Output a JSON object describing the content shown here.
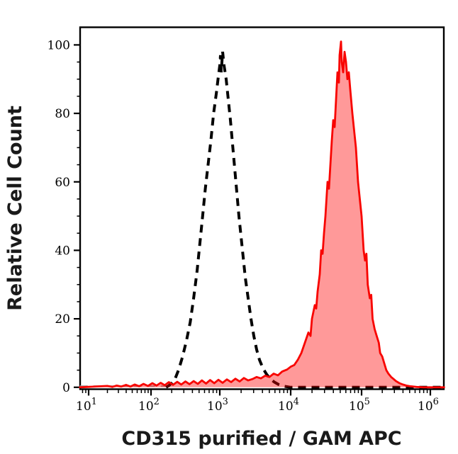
{
  "chart_data": {
    "type": "area",
    "subtype": "flow cytometry histogram overlay (two curves, no legend shown)",
    "title": "",
    "xlabel": "CD315 purified / GAM APC",
    "ylabel": "Relative Cell Count",
    "grid": false,
    "legend": "none",
    "x_axis": {
      "scale": "log",
      "min_log10": 0.86,
      "max_log10": 6.2,
      "tick_base": "10",
      "major_tick_exponents": [
        1,
        2,
        3,
        4,
        5,
        6
      ],
      "minor_tick_multiples": [
        2,
        3,
        4,
        5,
        6,
        7,
        8,
        9
      ]
    },
    "y_axis": {
      "min": 0,
      "max": 105,
      "major_ticks": [
        0,
        20,
        40,
        60,
        80,
        100
      ],
      "minor_tick_step": 5
    },
    "series": [
      {
        "name": "black-dashed-control",
        "description": "black dashed open histogram (unstained/negative control)",
        "line_color": "#000000",
        "line_style": "dashed",
        "fill": "none",
        "baseline_dash_color_left_of_rise": "#a3a3a3",
        "peak": {
          "x": 1100,
          "x_log10": 3.04,
          "y": 98
        },
        "points_log10x_y": [
          [
            2.22,
            0
          ],
          [
            2.26,
            0.5
          ],
          [
            2.3,
            1.2
          ],
          [
            2.35,
            2.5
          ],
          [
            2.4,
            5
          ],
          [
            2.46,
            9
          ],
          [
            2.52,
            14
          ],
          [
            2.57,
            19
          ],
          [
            2.62,
            26
          ],
          [
            2.67,
            34
          ],
          [
            2.71,
            42
          ],
          [
            2.75,
            50
          ],
          [
            2.79,
            58
          ],
          [
            2.83,
            65
          ],
          [
            2.87,
            72
          ],
          [
            2.91,
            80
          ],
          [
            2.95,
            86
          ],
          [
            2.98,
            91
          ],
          [
            3.0,
            94
          ],
          [
            3.01,
            97
          ],
          [
            3.02,
            92
          ],
          [
            3.04,
            98
          ],
          [
            3.06,
            94
          ],
          [
            3.09,
            90
          ],
          [
            3.12,
            84
          ],
          [
            3.15,
            78
          ],
          [
            3.18,
            71
          ],
          [
            3.21,
            64
          ],
          [
            3.24,
            57
          ],
          [
            3.27,
            50
          ],
          [
            3.3,
            44
          ],
          [
            3.33,
            38
          ],
          [
            3.36,
            32
          ],
          [
            3.4,
            26
          ],
          [
            3.44,
            20
          ],
          [
            3.48,
            15
          ],
          [
            3.52,
            11
          ],
          [
            3.56,
            8
          ],
          [
            3.61,
            5.5
          ],
          [
            3.66,
            3.8
          ],
          [
            3.71,
            2.5
          ],
          [
            3.77,
            1.5
          ],
          [
            3.83,
            0.8
          ],
          [
            3.9,
            0.3
          ],
          [
            4.0,
            0
          ],
          [
            6.2,
            0
          ]
        ]
      },
      {
        "name": "red-filled-stained",
        "description": "red filled histogram (CD315 purified / GAM APC stained cells)",
        "line_color": "#f80400",
        "line_style": "solid",
        "fill": "rgba(255,0,0,0.40)",
        "peak": {
          "x": 51000,
          "x_log10": 4.71,
          "y": 101
        },
        "points_log10x_y": [
          [
            0.86,
            0
          ],
          [
            1.3,
            0.4
          ],
          [
            1.38,
            0.1
          ],
          [
            1.45,
            0.5
          ],
          [
            1.52,
            0.2
          ],
          [
            1.6,
            0.7
          ],
          [
            1.67,
            0.2
          ],
          [
            1.74,
            0.8
          ],
          [
            1.81,
            0.3
          ],
          [
            1.88,
            1.0
          ],
          [
            1.95,
            0.4
          ],
          [
            2.02,
            1.2
          ],
          [
            2.08,
            0.5
          ],
          [
            2.14,
            1.3
          ],
          [
            2.2,
            0.6
          ],
          [
            2.26,
            1.5
          ],
          [
            2.32,
            0.7
          ],
          [
            2.38,
            1.6
          ],
          [
            2.44,
            0.8
          ],
          [
            2.5,
            1.7
          ],
          [
            2.56,
            0.9
          ],
          [
            2.62,
            1.8
          ],
          [
            2.68,
            1.0
          ],
          [
            2.74,
            2.0
          ],
          [
            2.8,
            1.1
          ],
          [
            2.86,
            2.1
          ],
          [
            2.92,
            1.2
          ],
          [
            2.98,
            2.2
          ],
          [
            3.04,
            1.3
          ],
          [
            3.1,
            2.3
          ],
          [
            3.16,
            1.5
          ],
          [
            3.22,
            2.5
          ],
          [
            3.28,
            1.7
          ],
          [
            3.34,
            2.7
          ],
          [
            3.4,
            2.0
          ],
          [
            3.46,
            2.4
          ],
          [
            3.52,
            3.0
          ],
          [
            3.58,
            2.6
          ],
          [
            3.64,
            3.4
          ],
          [
            3.7,
            3.0
          ],
          [
            3.76,
            4.0
          ],
          [
            3.82,
            3.5
          ],
          [
            3.88,
            4.6
          ],
          [
            3.95,
            5.2
          ],
          [
            4.0,
            6.0
          ],
          [
            4.05,
            6.5
          ],
          [
            4.1,
            8.0
          ],
          [
            4.15,
            10
          ],
          [
            4.2,
            13
          ],
          [
            4.25,
            16
          ],
          [
            4.28,
            15
          ],
          [
            4.3,
            20
          ],
          [
            4.34,
            24
          ],
          [
            4.36,
            23
          ],
          [
            4.38,
            28
          ],
          [
            4.41,
            33
          ],
          [
            4.43,
            40
          ],
          [
            4.45,
            39
          ],
          [
            4.47,
            45
          ],
          [
            4.49,
            50
          ],
          [
            4.52,
            60
          ],
          [
            4.54,
            58
          ],
          [
            4.56,
            65
          ],
          [
            4.58,
            72
          ],
          [
            4.6,
            78
          ],
          [
            4.62,
            76
          ],
          [
            4.64,
            84
          ],
          [
            4.66,
            92
          ],
          [
            4.68,
            89
          ],
          [
            4.69,
            97
          ],
          [
            4.71,
            101
          ],
          [
            4.72,
            95
          ],
          [
            4.74,
            92
          ],
          [
            4.76,
            98
          ],
          [
            4.78,
            95
          ],
          [
            4.8,
            90
          ],
          [
            4.82,
            92
          ],
          [
            4.84,
            87
          ],
          [
            4.87,
            80
          ],
          [
            4.9,
            74
          ],
          [
            4.92,
            70
          ],
          [
            4.95,
            60
          ],
          [
            4.98,
            54
          ],
          [
            5.0,
            50
          ],
          [
            5.03,
            40
          ],
          [
            5.05,
            37
          ],
          [
            5.07,
            39
          ],
          [
            5.09,
            30
          ],
          [
            5.12,
            26
          ],
          [
            5.14,
            27
          ],
          [
            5.16,
            20
          ],
          [
            5.19,
            17
          ],
          [
            5.22,
            15
          ],
          [
            5.25,
            13
          ],
          [
            5.27,
            10
          ],
          [
            5.3,
            9
          ],
          [
            5.33,
            7
          ],
          [
            5.36,
            5
          ],
          [
            5.39,
            4
          ],
          [
            5.43,
            3
          ],
          [
            5.46,
            2.5
          ],
          [
            5.5,
            1.8
          ],
          [
            5.55,
            1.2
          ],
          [
            5.6,
            0.8
          ],
          [
            5.65,
            0.5
          ],
          [
            5.7,
            0.3
          ],
          [
            5.8,
            0.1
          ],
          [
            5.9,
            0
          ],
          [
            6.2,
            0
          ]
        ]
      }
    ]
  }
}
